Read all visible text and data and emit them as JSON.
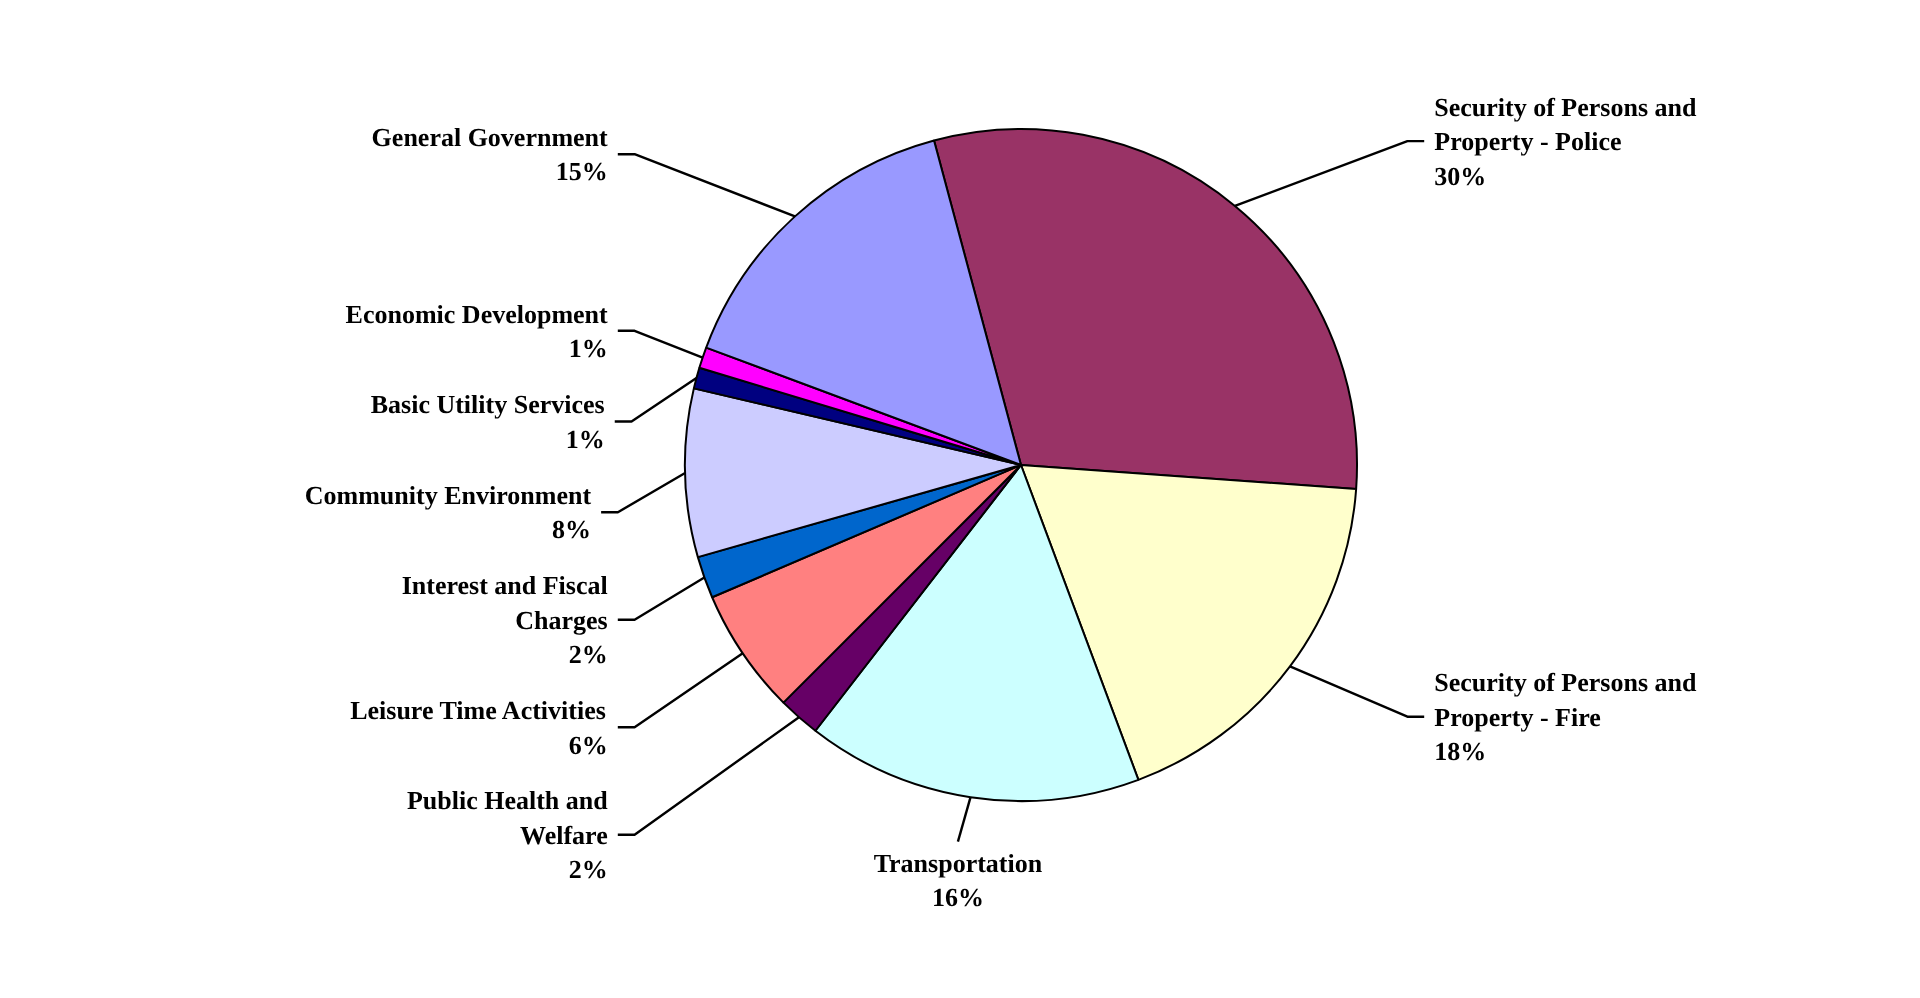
{
  "chart_data": {
    "type": "pie",
    "categories": [
      "Security of Persons and Property - Police",
      "Security of Persons and Property - Fire",
      "Transportation",
      "Public Health and Welfare",
      "Leisure Time Activities",
      "Interest and Fiscal Charges",
      "Community Environment",
      "Basic Utility Services",
      "Economic Development",
      "General Government"
    ],
    "values": [
      30,
      18,
      16,
      2,
      6,
      2,
      8,
      1,
      1,
      15
    ],
    "value_labels": [
      "30%",
      "18%",
      "16%",
      "2%",
      "6%",
      "2%",
      "8%",
      "1%",
      "1%",
      "15%"
    ],
    "colors": [
      "#993366",
      "#ffffcc",
      "#ccffff",
      "#660066",
      "#ff8080",
      "#0066cc",
      "#ccccff",
      "#000080",
      "#ff00ff",
      "#9999ff"
    ]
  }
}
